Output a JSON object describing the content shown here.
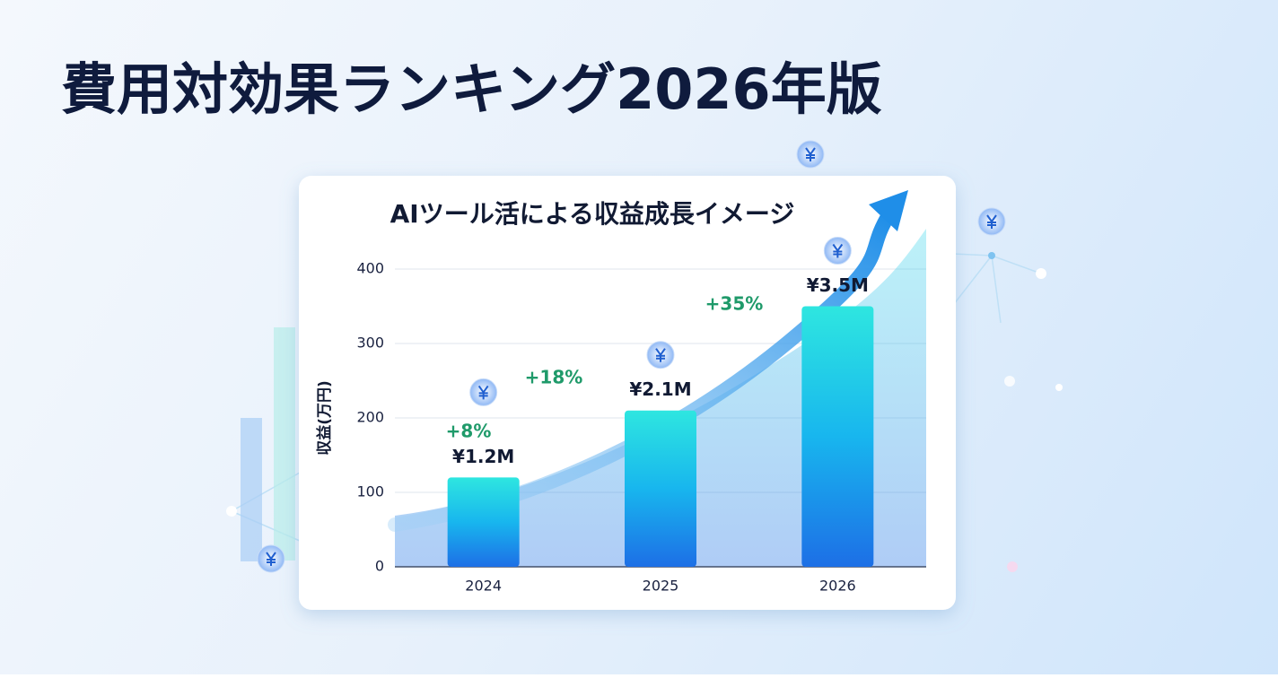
{
  "heading": "費用対効果ランキング2026年版",
  "chart_data": {
    "type": "bar",
    "title": "AIツール活による収益成長イメージ",
    "y_label": "収益(万円)",
    "categories": [
      "2024",
      "2025",
      "2026"
    ],
    "values": [
      120,
      210,
      350
    ],
    "value_labels": [
      "¥1.2M",
      "¥2.1M",
      "¥3.5M"
    ],
    "annotations": [
      "+8%",
      "+18%",
      "+35%"
    ],
    "ylim": [
      0,
      400
    ],
    "yticks": [
      0,
      100,
      200,
      300,
      400
    ],
    "grid": true,
    "color": "#1e88f0"
  }
}
